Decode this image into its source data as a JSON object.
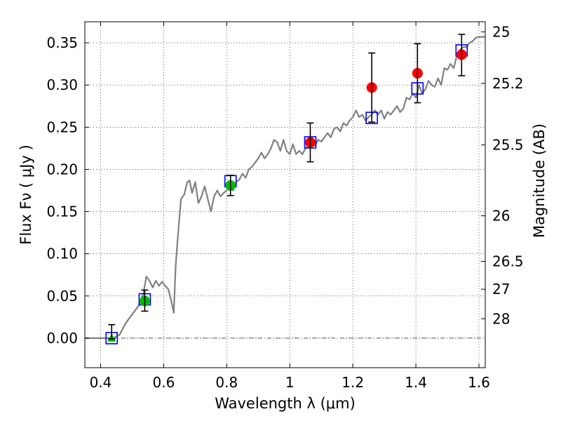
{
  "chart_data": {
    "type": "scatter",
    "xlabel": "Wavelength  λ (μm)",
    "ylabel": "Flux  Fν  ( μJy )",
    "y2label": "Magnitude (AB)",
    "xlim": [
      0.35,
      1.62
    ],
    "ylim": [
      -0.035,
      0.375
    ],
    "grid": true,
    "x_ticks": [
      0.4,
      0.6,
      0.8,
      1.0,
      1.2,
      1.4,
      1.6
    ],
    "x_tick_labels": [
      "0.4",
      "0.6",
      "0.8",
      "1",
      "1.2",
      "1.4",
      "1.6"
    ],
    "y_ticks": [
      0.0,
      0.05,
      0.1,
      0.15,
      0.2,
      0.25,
      0.3,
      0.35
    ],
    "y_tick_labels": [
      "0.00",
      "0.05",
      "0.10",
      "0.15",
      "0.20",
      "0.25",
      "0.30",
      "0.35"
    ],
    "y2_ticks": [
      {
        "label": "25",
        "flux": 0.363
      },
      {
        "label": "25.2",
        "flux": 0.302
      },
      {
        "label": "25.5",
        "flux": 0.229
      },
      {
        "label": "26",
        "flux": 0.145
      },
      {
        "label": "26.5",
        "flux": 0.091
      },
      {
        "label": "27",
        "flux": 0.058
      },
      {
        "label": "28",
        "flux": 0.023
      }
    ],
    "zero_line": 0.0,
    "series": [
      {
        "kind": "line",
        "color": "#808080",
        "points": [
          [
            0.35,
            0.0
          ],
          [
            0.44,
            0.0
          ],
          [
            0.46,
            0.004
          ],
          [
            0.48,
            0.018
          ],
          [
            0.5,
            0.028
          ],
          [
            0.52,
            0.038
          ],
          [
            0.535,
            0.052
          ],
          [
            0.545,
            0.073
          ],
          [
            0.555,
            0.068
          ],
          [
            0.565,
            0.06
          ],
          [
            0.575,
            0.068
          ],
          [
            0.585,
            0.062
          ],
          [
            0.595,
            0.067
          ],
          [
            0.605,
            0.062
          ],
          [
            0.615,
            0.058
          ],
          [
            0.62,
            0.05
          ],
          [
            0.625,
            0.043
          ],
          [
            0.632,
            0.03
          ],
          [
            0.638,
            0.085
          ],
          [
            0.645,
            0.12
          ],
          [
            0.655,
            0.165
          ],
          [
            0.665,
            0.17
          ],
          [
            0.675,
            0.185
          ],
          [
            0.682,
            0.187
          ],
          [
            0.69,
            0.172
          ],
          [
            0.7,
            0.185
          ],
          [
            0.71,
            0.16
          ],
          [
            0.72,
            0.168
          ],
          [
            0.73,
            0.18
          ],
          [
            0.74,
            0.165
          ],
          [
            0.75,
            0.15
          ],
          [
            0.76,
            0.168
          ],
          [
            0.77,
            0.175
          ],
          [
            0.78,
            0.168
          ],
          [
            0.79,
            0.172
          ],
          [
            0.8,
            0.175
          ],
          [
            0.81,
            0.18
          ],
          [
            0.82,
            0.175
          ],
          [
            0.83,
            0.185
          ],
          [
            0.84,
            0.188
          ],
          [
            0.85,
            0.195
          ],
          [
            0.86,
            0.19
          ],
          [
            0.87,
            0.2
          ],
          [
            0.88,
            0.203
          ],
          [
            0.89,
            0.208
          ],
          [
            0.9,
            0.213
          ],
          [
            0.91,
            0.22
          ],
          [
            0.92,
            0.213
          ],
          [
            0.93,
            0.218
          ],
          [
            0.94,
            0.225
          ],
          [
            0.95,
            0.235
          ],
          [
            0.96,
            0.232
          ],
          [
            0.97,
            0.222
          ],
          [
            0.98,
            0.235
          ],
          [
            0.99,
            0.222
          ],
          [
            1.0,
            0.218
          ],
          [
            1.01,
            0.23
          ],
          [
            1.02,
            0.218
          ],
          [
            1.03,
            0.222
          ],
          [
            1.04,
            0.218
          ],
          [
            1.05,
            0.225
          ],
          [
            1.06,
            0.23
          ],
          [
            1.07,
            0.235
          ],
          [
            1.08,
            0.228
          ],
          [
            1.09,
            0.235
          ],
          [
            1.1,
            0.233
          ],
          [
            1.11,
            0.238
          ],
          [
            1.12,
            0.243
          ],
          [
            1.13,
            0.238
          ],
          [
            1.14,
            0.248
          ],
          [
            1.15,
            0.25
          ],
          [
            1.16,
            0.245
          ],
          [
            1.17,
            0.255
          ],
          [
            1.18,
            0.252
          ],
          [
            1.19,
            0.258
          ],
          [
            1.2,
            0.262
          ],
          [
            1.21,
            0.27
          ],
          [
            1.22,
            0.262
          ],
          [
            1.23,
            0.265
          ],
          [
            1.24,
            0.258
          ],
          [
            1.25,
            0.262
          ],
          [
            1.26,
            0.265
          ],
          [
            1.27,
            0.27
          ],
          [
            1.28,
            0.265
          ],
          [
            1.29,
            0.27
          ],
          [
            1.3,
            0.26
          ],
          [
            1.31,
            0.268
          ],
          [
            1.32,
            0.265
          ],
          [
            1.33,
            0.27
          ],
          [
            1.34,
            0.275
          ],
          [
            1.35,
            0.268
          ],
          [
            1.36,
            0.272
          ],
          [
            1.37,
            0.285
          ],
          [
            1.38,
            0.283
          ],
          [
            1.39,
            0.29
          ],
          [
            1.4,
            0.285
          ],
          [
            1.41,
            0.3
          ],
          [
            1.42,
            0.29
          ],
          [
            1.43,
            0.295
          ],
          [
            1.44,
            0.305
          ],
          [
            1.45,
            0.3
          ],
          [
            1.46,
            0.298
          ],
          [
            1.47,
            0.308
          ],
          [
            1.48,
            0.3
          ],
          [
            1.49,
            0.32
          ],
          [
            1.5,
            0.318
          ],
          [
            1.51,
            0.325
          ],
          [
            1.52,
            0.32
          ],
          [
            1.53,
            0.335
          ],
          [
            1.54,
            0.342
          ],
          [
            1.55,
            0.345
          ],
          [
            1.56,
            0.345
          ],
          [
            1.57,
            0.35
          ],
          [
            1.58,
            0.352
          ],
          [
            1.59,
            0.356
          ],
          [
            1.6,
            0.357
          ],
          [
            1.62,
            0.357
          ]
        ]
      },
      {
        "kind": "markers",
        "marker": "open-square",
        "color": "#0000ff",
        "points": [
          [
            0.435,
            0.0
          ],
          [
            0.54,
            0.046
          ],
          [
            0.812,
            0.186
          ],
          [
            1.065,
            0.232
          ],
          [
            1.26,
            0.261
          ],
          [
            1.405,
            0.296
          ],
          [
            1.545,
            0.341
          ]
        ]
      },
      {
        "kind": "markers",
        "marker": "circle",
        "color": "#00bb00",
        "points": [
          [
            0.54,
            0.044
          ],
          [
            0.812,
            0.181
          ]
        ]
      },
      {
        "kind": "markers",
        "marker": "triangle",
        "color": "#00bb00",
        "points": [
          [
            0.435,
            0.0
          ]
        ]
      },
      {
        "kind": "markers",
        "marker": "circle",
        "color": "#ff0000",
        "points": [
          [
            1.065,
            0.232
          ],
          [
            1.26,
            0.297
          ],
          [
            1.405,
            0.314
          ],
          [
            1.545,
            0.336
          ]
        ]
      },
      {
        "kind": "errorbars",
        "color": "#000000",
        "bars": [
          {
            "x": 0.435,
            "low": -0.001,
            "high": 0.016
          },
          {
            "x": 0.54,
            "low": 0.032,
            "high": 0.057
          },
          {
            "x": 0.812,
            "low": 0.169,
            "high": 0.193
          },
          {
            "x": 1.065,
            "low": 0.209,
            "high": 0.255
          },
          {
            "x": 1.26,
            "low": 0.256,
            "high": 0.338
          },
          {
            "x": 1.405,
            "low": 0.279,
            "high": 0.349
          },
          {
            "x": 1.545,
            "low": 0.311,
            "high": 0.36
          }
        ]
      }
    ]
  }
}
